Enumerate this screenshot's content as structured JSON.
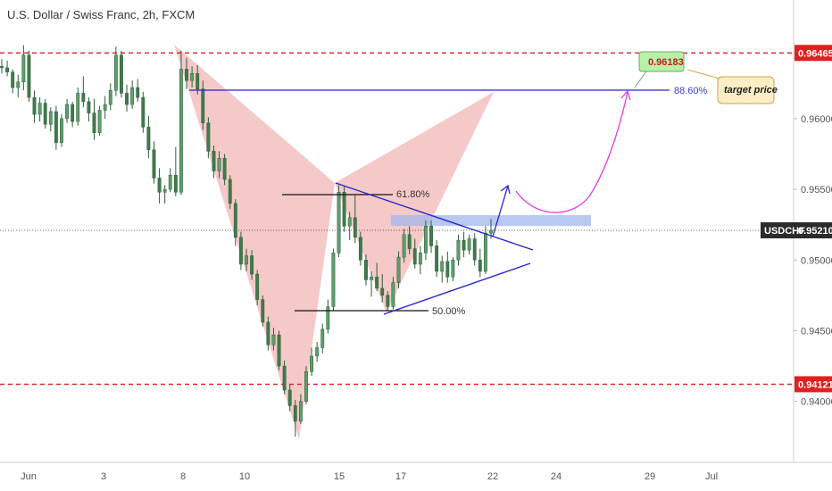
{
  "chart_data": {
    "type": "candlestick",
    "title": "U.S. Dollar / Swiss Franc, 2h, FXCM",
    "x_ticks": [
      "Jun",
      "3",
      "8",
      "10",
      "15",
      "17",
      "22",
      "24",
      "29",
      "Jul"
    ],
    "y_ticks": [
      0.94,
      0.945,
      0.95,
      0.955,
      0.96
    ],
    "y_tick_labels": [
      "0.94000",
      "0.94500",
      "0.95000",
      "0.95500",
      "0.96000"
    ],
    "ylim": [
      0.9365,
      0.9665
    ],
    "last_price": {
      "symbol": "USDCHF",
      "value": 0.9521,
      "label": "0.95210"
    },
    "resistance": {
      "value": 0.96465,
      "label": "0.96465"
    },
    "support": {
      "value": 0.94121,
      "label": "0.94121"
    },
    "target": {
      "value": 0.96183,
      "label": "0.96183",
      "note": "target price",
      "fib_label": "88.60%"
    },
    "fib_levels": [
      {
        "label": "61.80%"
      },
      {
        "label": "50.00%"
      }
    ],
    "colors": {
      "up": "#5d9e6a",
      "down": "#3f7a4c",
      "pattern": "#f2b7b5",
      "level_line": "#e02020",
      "trend_line": "#2626c8",
      "projection": "#e63ae6",
      "target_box": "#b8f0a8",
      "note_box": "#fbeec6",
      "zone": "#9fb5ec"
    },
    "candles": [
      [
        0.9637,
        0.9642,
        0.9632,
        0.9636
      ],
      [
        0.9636,
        0.9641,
        0.963,
        0.9633
      ],
      [
        0.9633,
        0.9635,
        0.9618,
        0.9622
      ],
      [
        0.9622,
        0.9631,
        0.9615,
        0.9626
      ],
      [
        0.9626,
        0.9652,
        0.962,
        0.9645
      ],
      [
        0.9645,
        0.9648,
        0.9612,
        0.9615
      ],
      [
        0.9615,
        0.962,
        0.9597,
        0.9603
      ],
      [
        0.9603,
        0.9615,
        0.9598,
        0.9611
      ],
      [
        0.9611,
        0.9614,
        0.9593,
        0.9596
      ],
      [
        0.9596,
        0.9608,
        0.9591,
        0.9605
      ],
      [
        0.9605,
        0.9609,
        0.9578,
        0.9583
      ],
      [
        0.9583,
        0.9603,
        0.958,
        0.96
      ],
      [
        0.96,
        0.9614,
        0.9597,
        0.961
      ],
      [
        0.961,
        0.9612,
        0.9594,
        0.9598
      ],
      [
        0.9598,
        0.9622,
        0.9595,
        0.9618
      ],
      [
        0.9618,
        0.963,
        0.9608,
        0.9612
      ],
      [
        0.9612,
        0.9615,
        0.9598,
        0.9604
      ],
      [
        0.9604,
        0.9614,
        0.9585,
        0.959
      ],
      [
        0.959,
        0.9609,
        0.9588,
        0.9606
      ],
      [
        0.9606,
        0.9616,
        0.96,
        0.961
      ],
      [
        0.961,
        0.9625,
        0.9606,
        0.962
      ],
      [
        0.962,
        0.9651,
        0.9616,
        0.9645
      ],
      [
        0.9645,
        0.9648,
        0.9615,
        0.9618
      ],
      [
        0.9618,
        0.9624,
        0.9605,
        0.961
      ],
      [
        0.961,
        0.9627,
        0.9607,
        0.9622
      ],
      [
        0.9622,
        0.9628,
        0.9612,
        0.9615
      ],
      [
        0.9615,
        0.9619,
        0.959,
        0.9594
      ],
      [
        0.9594,
        0.9602,
        0.9572,
        0.9578
      ],
      [
        0.9578,
        0.9584,
        0.9554,
        0.9558
      ],
      [
        0.9558,
        0.9565,
        0.954,
        0.9548
      ],
      [
        0.9548,
        0.9553,
        0.954,
        0.955
      ],
      [
        0.955,
        0.9565,
        0.9548,
        0.956
      ],
      [
        0.956,
        0.958,
        0.9545,
        0.9548
      ],
      [
        0.9548,
        0.9648,
        0.9546,
        0.9635
      ],
      [
        0.9635,
        0.9643,
        0.9621,
        0.9627
      ],
      [
        0.9627,
        0.9637,
        0.9622,
        0.9632
      ],
      [
        0.9632,
        0.9638,
        0.9617,
        0.9621
      ],
      [
        0.9621,
        0.9627,
        0.9592,
        0.9597
      ],
      [
        0.9597,
        0.9601,
        0.9572,
        0.9577
      ],
      [
        0.9577,
        0.9581,
        0.9558,
        0.9563
      ],
      [
        0.9563,
        0.9577,
        0.9558,
        0.9572
      ],
      [
        0.9572,
        0.9575,
        0.9553,
        0.9557
      ],
      [
        0.9557,
        0.956,
        0.9536,
        0.954
      ],
      [
        0.954,
        0.9543,
        0.951,
        0.9516
      ],
      [
        0.9516,
        0.952,
        0.9493,
        0.9497
      ],
      [
        0.9497,
        0.9508,
        0.9492,
        0.9503
      ],
      [
        0.9503,
        0.9507,
        0.9486,
        0.949
      ],
      [
        0.949,
        0.9493,
        0.9468,
        0.9472
      ],
      [
        0.9472,
        0.9475,
        0.9453,
        0.9456
      ],
      [
        0.9456,
        0.946,
        0.9436,
        0.944
      ],
      [
        0.944,
        0.9452,
        0.9436,
        0.9447
      ],
      [
        0.9447,
        0.945,
        0.9422,
        0.9425
      ],
      [
        0.9425,
        0.9429,
        0.9405,
        0.9408
      ],
      [
        0.9408,
        0.9412,
        0.9393,
        0.9397
      ],
      [
        0.9397,
        0.9401,
        0.9375,
        0.9386
      ],
      [
        0.9386,
        0.9405,
        0.9384,
        0.94
      ],
      [
        0.94,
        0.9425,
        0.9398,
        0.9421
      ],
      [
        0.9421,
        0.9438,
        0.9418,
        0.9432
      ],
      [
        0.9432,
        0.9442,
        0.9428,
        0.9438
      ],
      [
        0.9438,
        0.9455,
        0.9434,
        0.9451
      ],
      [
        0.9451,
        0.9472,
        0.9448,
        0.9467
      ],
      [
        0.9467,
        0.9508,
        0.9464,
        0.9505
      ],
      [
        0.9505,
        0.9553,
        0.9502,
        0.9548
      ],
      [
        0.9548,
        0.9552,
        0.952,
        0.9524
      ],
      [
        0.9524,
        0.9534,
        0.9514,
        0.953
      ],
      [
        0.953,
        0.9546,
        0.9512,
        0.9516
      ],
      [
        0.9516,
        0.952,
        0.9496,
        0.95
      ],
      [
        0.95,
        0.9504,
        0.9482,
        0.9486
      ],
      [
        0.9486,
        0.9492,
        0.9474,
        0.9488
      ],
      [
        0.9488,
        0.9498,
        0.9478,
        0.948
      ],
      [
        0.948,
        0.949,
        0.947,
        0.9475
      ],
      [
        0.9475,
        0.9478,
        0.9464,
        0.9467
      ],
      [
        0.9467,
        0.9488,
        0.9465,
        0.9484
      ],
      [
        0.9484,
        0.9506,
        0.948,
        0.9502
      ],
      [
        0.9502,
        0.9522,
        0.9498,
        0.9518
      ],
      [
        0.9518,
        0.9524,
        0.9504,
        0.9508
      ],
      [
        0.9508,
        0.9515,
        0.9494,
        0.9497
      ],
      [
        0.9497,
        0.951,
        0.949,
        0.9505
      ],
      [
        0.9505,
        0.9528,
        0.95,
        0.9524
      ],
      [
        0.9524,
        0.9528,
        0.9505,
        0.951
      ],
      [
        0.951,
        0.9514,
        0.9488,
        0.9492
      ],
      [
        0.9492,
        0.9503,
        0.9484,
        0.9499
      ],
      [
        0.9499,
        0.9506,
        0.9484,
        0.9488
      ],
      [
        0.9488,
        0.9502,
        0.9485,
        0.95
      ],
      [
        0.95,
        0.9518,
        0.9496,
        0.9514
      ],
      [
        0.9514,
        0.952,
        0.9502,
        0.9507
      ],
      [
        0.9507,
        0.9518,
        0.9504,
        0.9515
      ],
      [
        0.9515,
        0.9519,
        0.9496,
        0.95
      ],
      [
        0.95,
        0.9508,
        0.9488,
        0.9492
      ],
      [
        0.9492,
        0.9524,
        0.949,
        0.9519
      ],
      [
        0.9519,
        0.9529,
        0.9515,
        0.9521
      ]
    ]
  }
}
